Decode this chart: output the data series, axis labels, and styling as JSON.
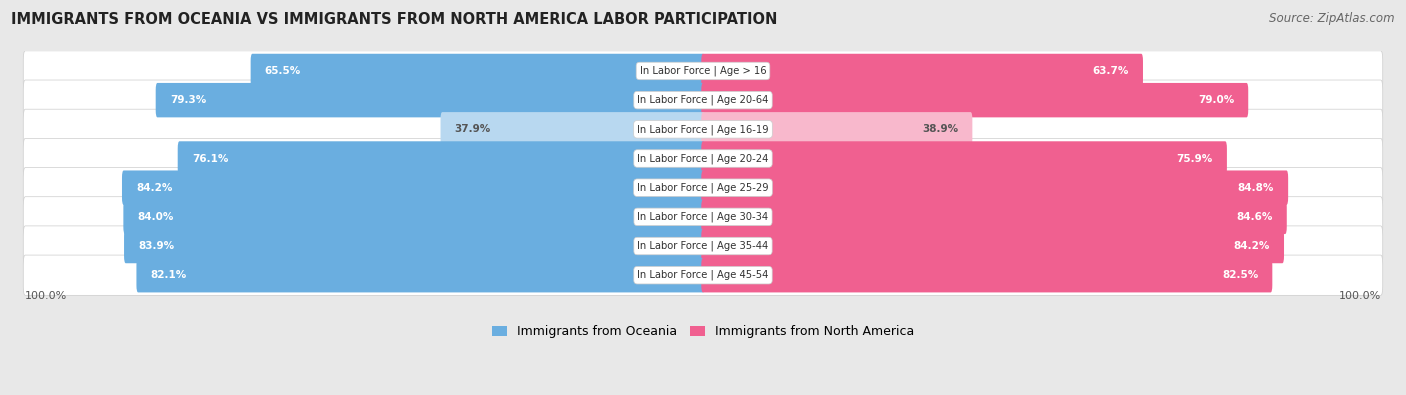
{
  "title": "IMMIGRANTS FROM OCEANIA VS IMMIGRANTS FROM NORTH AMERICA LABOR PARTICIPATION",
  "source": "Source: ZipAtlas.com",
  "categories": [
    "In Labor Force | Age > 16",
    "In Labor Force | Age 20-64",
    "In Labor Force | Age 16-19",
    "In Labor Force | Age 20-24",
    "In Labor Force | Age 25-29",
    "In Labor Force | Age 30-34",
    "In Labor Force | Age 35-44",
    "In Labor Force | Age 45-54"
  ],
  "oceania_values": [
    65.5,
    79.3,
    37.9,
    76.1,
    84.2,
    84.0,
    83.9,
    82.1
  ],
  "north_america_values": [
    63.7,
    79.0,
    38.9,
    75.9,
    84.8,
    84.6,
    84.2,
    82.5
  ],
  "oceania_color": "#6aaee0",
  "oceania_color_light": "#b8d8f0",
  "north_america_color": "#f06090",
  "north_america_color_light": "#f8b8cc",
  "bg_color": "#e8e8e8",
  "row_bg": "#f0f0f0",
  "legend_oceania": "Immigrants from Oceania",
  "legend_north_america": "Immigrants from North America",
  "bar_max": 100.0
}
